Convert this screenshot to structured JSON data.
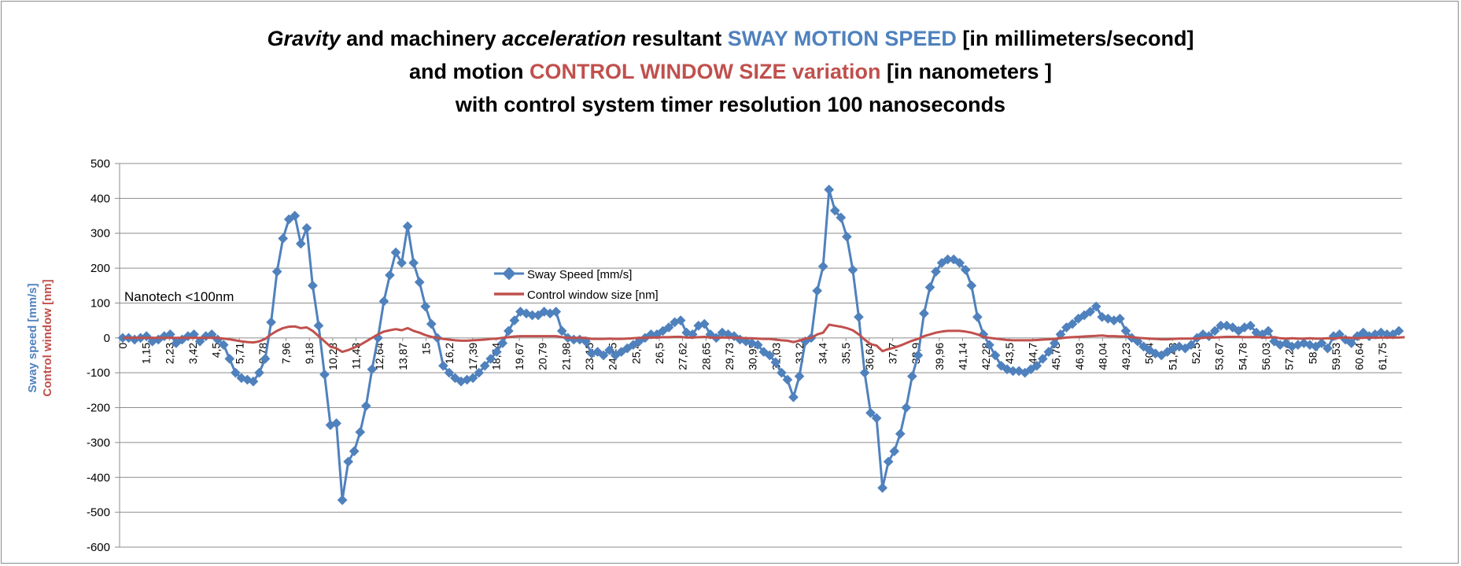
{
  "title": {
    "line1": {
      "italic1": "Gravity",
      "text1": " and machinery ",
      "italic2": "acceleration",
      "text2": " resultant ",
      "blue": "SWAY MOTION SPEED",
      "text3": " [in millimeters/second]"
    },
    "line2": {
      "text1": "and motion ",
      "red": "CONTROL WINDOW SIZE variation",
      "text2": " [in nanometers ]"
    },
    "line3": "with control system timer resolution 100 nanoseconds"
  },
  "annotation": "Nanotech <100nm",
  "colors": {
    "sway": "#4f81bd",
    "control": "#c0504d",
    "grid": "#8c8c8c"
  },
  "chart_data": {
    "type": "line",
    "ylabel_blue": "Sway speed [mm/s]",
    "ylabel_red": "Control window [nm]",
    "ylim": [
      -600,
      500
    ],
    "yticks": [
      -600,
      -500,
      -400,
      -300,
      -200,
      -100,
      0,
      100,
      200,
      300,
      400,
      500
    ],
    "grid": true,
    "legend_position": "center",
    "legend": [
      "Sway Speed [mm/s]",
      "Control window size [nm]"
    ],
    "x_tick_labels": [
      "0",
      "1,15",
      "2,23",
      "3,42",
      "4,5",
      "5,71",
      "6,78",
      "7,96",
      "9,18",
      "10,28",
      "11,43",
      "12,64",
      "13,87",
      "15",
      "16,2",
      "17,39",
      "18,54",
      "19,67",
      "20,79",
      "21,98",
      "23,15",
      "24,25",
      "25,4",
      "26,5",
      "27,62",
      "28,65",
      "29,73",
      "30,93",
      "32,03",
      "33,2",
      "34,4",
      "35,5",
      "36,64",
      "37,7",
      "38,9",
      "39,96",
      "41,14",
      "42,28",
      "43,5",
      "44,7",
      "45,78",
      "46,93",
      "48,04",
      "49,23",
      "50,4",
      "51,43",
      "52,5",
      "53,67",
      "54,78",
      "56,03",
      "57,26",
      "58,4",
      "59,53",
      "60,64",
      "61,75"
    ],
    "series": [
      {
        "name": "Sway Speed [mm/s]",
        "values": [
          0,
          0,
          -5,
          0,
          5,
          -10,
          -5,
          5,
          10,
          -15,
          -5,
          5,
          10,
          -10,
          5,
          10,
          -5,
          -20,
          -60,
          -100,
          -115,
          -120,
          -125,
          -100,
          -60,
          45,
          190,
          285,
          340,
          350,
          270,
          315,
          150,
          35,
          -105,
          -250,
          -245,
          -465,
          -355,
          -325,
          -270,
          -195,
          -90,
          0,
          105,
          180,
          245,
          215,
          320,
          215,
          160,
          90,
          40,
          0,
          -80,
          -100,
          -115,
          -125,
          -120,
          -115,
          -100,
          -80,
          -60,
          -40,
          -15,
          20,
          50,
          75,
          70,
          65,
          65,
          75,
          70,
          75,
          20,
          0,
          -5,
          -5,
          -10,
          -45,
          -40,
          -50,
          -35,
          -50,
          -40,
          -30,
          -20,
          -10,
          0,
          10,
          10,
          20,
          30,
          45,
          50,
          15,
          10,
          35,
          40,
          10,
          0,
          15,
          10,
          5,
          -5,
          -10,
          -15,
          -20,
          -40,
          -50,
          -70,
          -100,
          -120,
          -170,
          -110,
          -10,
          0,
          135,
          205,
          425,
          365,
          345,
          290,
          195,
          60,
          -100,
          -215,
          -230,
          -430,
          -355,
          -325,
          -275,
          -200,
          -110,
          -50,
          70,
          145,
          190,
          215,
          225,
          225,
          215,
          195,
          150,
          60,
          10,
          -20,
          -50,
          -80,
          -90,
          -95,
          -95,
          -100,
          -90,
          -80,
          -60,
          -40,
          -15,
          10,
          30,
          40,
          55,
          65,
          75,
          90,
          60,
          55,
          50,
          55,
          20,
          0,
          -10,
          -25,
          -35,
          -45,
          -50,
          -40,
          -30,
          -25,
          -30,
          -20,
          0,
          10,
          5,
          20,
          35,
          35,
          30,
          20,
          30,
          35,
          15,
          10,
          20,
          -10,
          -20,
          -15,
          -25,
          -20,
          -15,
          -20,
          -25,
          -15,
          -30,
          5,
          10,
          -5,
          -15,
          5,
          15,
          5,
          10,
          15,
          10,
          10,
          20
        ]
      },
      {
        "name": "Control window size [nm]",
        "values": [
          0,
          0,
          0,
          0,
          0,
          0,
          0,
          0,
          0,
          0,
          0,
          0,
          0,
          0,
          0,
          0,
          0,
          -2,
          -4,
          -7,
          -10,
          -12,
          -13,
          -10,
          -3,
          10,
          20,
          28,
          32,
          33,
          28,
          30,
          20,
          5,
          -10,
          -25,
          -30,
          -40,
          -35,
          -28,
          -20,
          -10,
          0,
          10,
          18,
          22,
          25,
          22,
          28,
          20,
          15,
          8,
          3,
          0,
          -3,
          -5,
          -7,
          -8,
          -8,
          -7,
          -6,
          -5,
          -3,
          -2,
          0,
          2,
          4,
          5,
          5,
          5,
          5,
          5,
          5,
          5,
          2,
          0,
          0,
          0,
          0,
          -3,
          -3,
          -3,
          -2,
          -3,
          -3,
          -2,
          -1,
          0,
          0,
          1,
          1,
          2,
          2,
          3,
          3,
          1,
          1,
          2,
          3,
          1,
          0,
          1,
          1,
          0,
          0,
          -1,
          -1,
          -2,
          -3,
          -3,
          -5,
          -7,
          -8,
          -12,
          -8,
          -2,
          0,
          10,
          15,
          38,
          35,
          32,
          28,
          22,
          10,
          -5,
          -18,
          -22,
          -38,
          -32,
          -28,
          -22,
          -15,
          -8,
          -3,
          5,
          10,
          15,
          18,
          20,
          20,
          20,
          18,
          15,
          10,
          3,
          0,
          -2,
          -4,
          -6,
          -7,
          -7,
          -7,
          -7,
          -6,
          -5,
          -4,
          -3,
          -1,
          1,
          2,
          3,
          4,
          5,
          6,
          7,
          5,
          5,
          4,
          4,
          2,
          0,
          -1,
          -2,
          -3,
          -4,
          -4,
          -3,
          -2,
          -2,
          -2,
          -2,
          0,
          1,
          1,
          2,
          3,
          3,
          3,
          2,
          2,
          3,
          1,
          1,
          2,
          -1,
          -2,
          -1,
          -2,
          -2,
          -1,
          -2,
          -2,
          -1,
          -2,
          0,
          1,
          0,
          -1,
          0,
          1,
          0,
          1,
          1,
          1,
          1,
          2
        ]
      }
    ]
  }
}
